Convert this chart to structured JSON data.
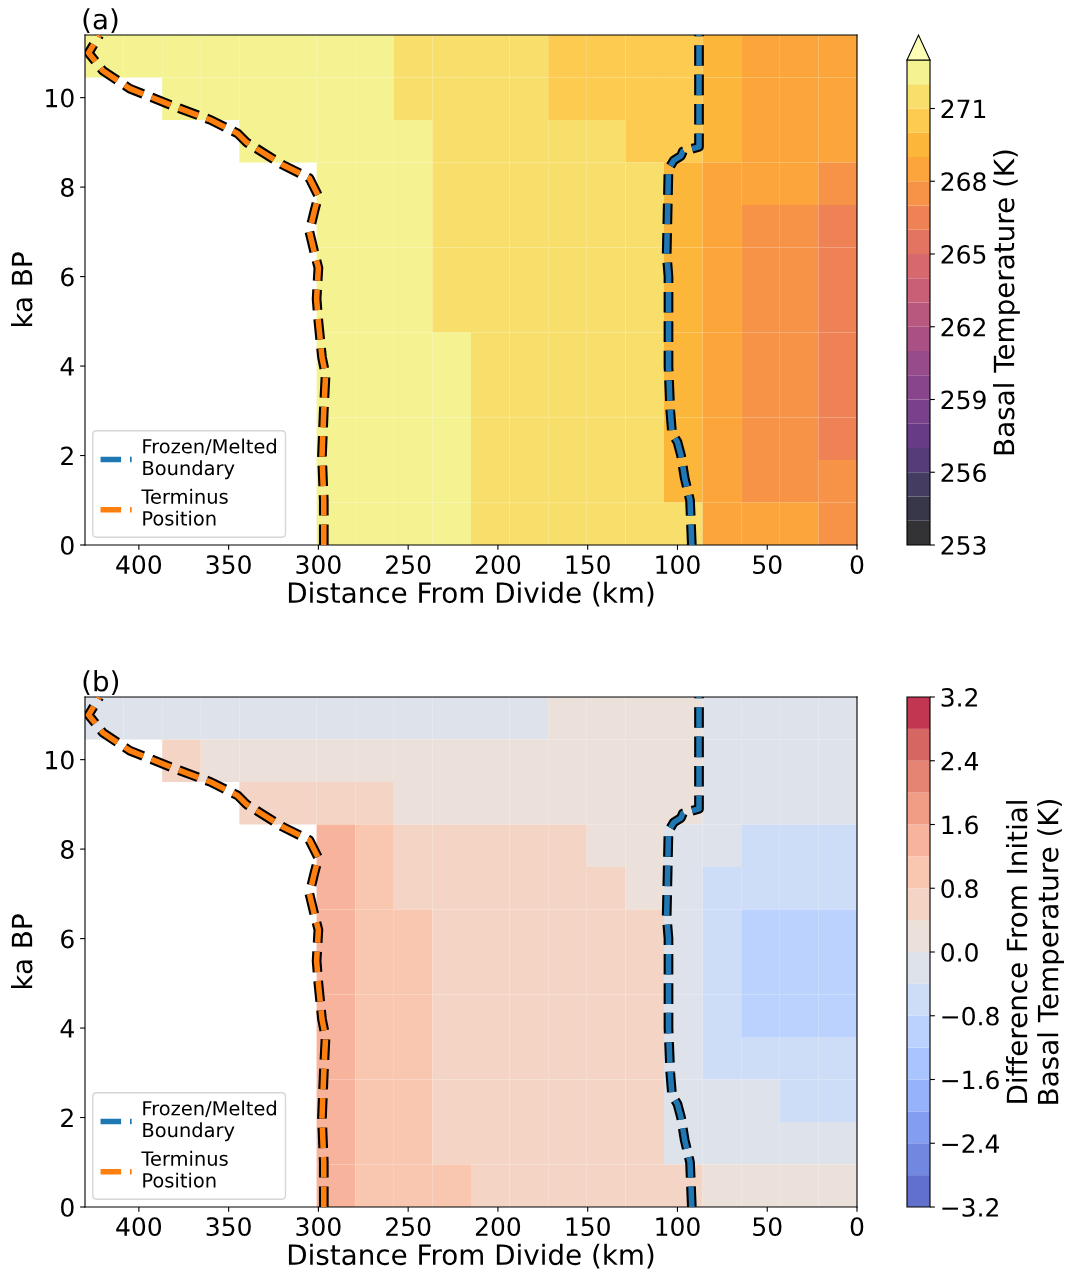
{
  "chart_data": [
    {
      "type": "heatmap",
      "title": "(a)",
      "xlabel": "Distance From Divide (km)",
      "ylabel": "ka BP",
      "clabel": "Basal Temperature (K)",
      "cells": [
        [
          272.5,
          272.5,
          272.5,
          272.5,
          272.5,
          272.5,
          272.5,
          272.5,
          271.5,
          271.5,
          271.5,
          271.5,
          270.5,
          270.5,
          270.5,
          270.5,
          269.5,
          268.5,
          268.5,
          268.5
        ],
        [
          null,
          null,
          272.5,
          272.5,
          272.5,
          272.5,
          272.5,
          272.5,
          271.5,
          271.5,
          271.5,
          271.5,
          270.5,
          270.5,
          270.5,
          270.5,
          269.5,
          268.5,
          268.5,
          268.5
        ],
        [
          null,
          null,
          null,
          null,
          272.5,
          272.5,
          272.5,
          272.5,
          272.5,
          271.5,
          271.5,
          271.5,
          271.5,
          271.5,
          270.5,
          270.5,
          269.5,
          268.5,
          268.5,
          268.5
        ],
        [
          null,
          null,
          null,
          null,
          null,
          null,
          272.5,
          272.5,
          272.5,
          271.5,
          271.5,
          271.5,
          271.5,
          271.5,
          271.5,
          269.5,
          268.5,
          268.5,
          268.5,
          267.5
        ],
        [
          null,
          null,
          null,
          null,
          null,
          null,
          272.5,
          272.5,
          272.5,
          271.5,
          271.5,
          271.5,
          271.5,
          271.5,
          271.5,
          269.5,
          268.5,
          267.5,
          267.5,
          266.5
        ],
        [
          null,
          null,
          null,
          null,
          null,
          null,
          272.5,
          272.5,
          272.5,
          271.5,
          271.5,
          271.5,
          271.5,
          271.5,
          271.5,
          269.5,
          268.5,
          267.5,
          267.5,
          266.5
        ],
        [
          null,
          null,
          null,
          null,
          null,
          null,
          272.5,
          272.5,
          272.5,
          271.5,
          271.5,
          271.5,
          271.5,
          271.5,
          271.5,
          269.5,
          268.5,
          267.5,
          267.5,
          266.5
        ],
        [
          null,
          null,
          null,
          null,
          null,
          null,
          272.5,
          272.5,
          272.5,
          272.5,
          271.5,
          271.5,
          271.5,
          271.5,
          271.5,
          269.5,
          268.5,
          267.5,
          267.5,
          266.5
        ],
        [
          null,
          null,
          null,
          null,
          null,
          null,
          272.5,
          272.5,
          272.5,
          272.5,
          271.5,
          271.5,
          271.5,
          271.5,
          271.5,
          269.5,
          268.5,
          267.5,
          267.5,
          266.5
        ],
        [
          null,
          null,
          null,
          null,
          null,
          null,
          272.5,
          272.5,
          272.5,
          272.5,
          271.5,
          271.5,
          271.5,
          271.5,
          271.5,
          269.5,
          268.5,
          267.5,
          267.5,
          266.5
        ],
        [
          null,
          null,
          null,
          null,
          null,
          null,
          272.5,
          272.5,
          272.5,
          272.5,
          271.5,
          271.5,
          271.5,
          271.5,
          271.5,
          269.5,
          268.5,
          267.5,
          267.5,
          267.5
        ],
        [
          null,
          null,
          null,
          null,
          null,
          null,
          272.5,
          272.5,
          272.5,
          272.5,
          271.5,
          271.5,
          271.5,
          271.5,
          271.5,
          271.5,
          268.5,
          268.5,
          268.5,
          267.5
        ]
      ],
      "clim": [
        253,
        273
      ],
      "cticks": [
        253,
        256,
        259,
        262,
        265,
        268,
        271
      ],
      "xlim": [
        430,
        0
      ],
      "xticks": [
        400,
        350,
        300,
        250,
        200,
        150,
        100,
        50,
        0
      ],
      "ylim": [
        0,
        11.4
      ],
      "yticks": [
        0,
        2,
        4,
        6,
        8,
        10
      ],
      "legend": "bottom left",
      "line_style": "dashed",
      "series": [
        {
          "type": "line",
          "name": "Frozen/Melted\nBoundary",
          "color": "#1f77b4",
          "x": [
            92,
            93,
            96,
            98,
            100,
            103,
            104,
            105,
            105,
            106,
            105,
            102,
            98,
            97,
            88,
            88
          ],
          "values": [
            0,
            1,
            1.5,
            2,
            2.3,
            2.5,
            3,
            4,
            6,
            6.5,
            8.4,
            8.6,
            8.7,
            8.8,
            8.9,
            11.4
          ]
        },
        {
          "type": "line",
          "name": "Terminus\nPosition",
          "color": "#ff7f0e",
          "x": [
            297,
            297,
            298,
            297,
            296,
            298,
            300,
            301,
            300,
            302,
            305,
            302,
            300,
            305,
            320,
            340,
            345,
            360,
            380,
            405,
            420,
            428,
            422
          ],
          "values": [
            0,
            1,
            2,
            3,
            3.8,
            4.2,
            5,
            5.5,
            6.2,
            6.5,
            7,
            7.5,
            7.8,
            8.2,
            8.5,
            9,
            9.2,
            9.5,
            9.8,
            10.2,
            10.6,
            11,
            11.4
          ]
        }
      ]
    },
    {
      "type": "heatmap",
      "title": "(b)",
      "xlabel": "Distance From Divide (km)",
      "ylabel": "ka BP",
      "clabel": "Difference From Initial\nBasal Temperature (K)",
      "cells": [
        [
          -0.2,
          -0.2,
          -0.2,
          -0.2,
          -0.2,
          -0.2,
          -0.2,
          -0.2,
          -0.2,
          -0.2,
          -0.2,
          -0.2,
          0.2,
          0.2,
          0.2,
          0.2,
          -0.2,
          -0.2,
          -0.2,
          -0.2
        ],
        [
          null,
          null,
          0.6,
          0.2,
          0.2,
          0.2,
          0.2,
          0.2,
          0.2,
          0.2,
          0.2,
          0.2,
          0.2,
          0.2,
          0.2,
          0.2,
          -0.2,
          -0.2,
          -0.2,
          -0.2
        ],
        [
          null,
          null,
          null,
          null,
          0.6,
          0.6,
          0.6,
          0.6,
          0.2,
          0.2,
          0.2,
          0.2,
          0.2,
          0.2,
          0.2,
          0.2,
          -0.2,
          -0.2,
          -0.2,
          -0.2
        ],
        [
          null,
          null,
          null,
          null,
          null,
          null,
          1.4,
          1.0,
          0.6,
          0.6,
          0.6,
          0.6,
          0.6,
          0.2,
          0.2,
          -0.2,
          -0.2,
          -0.6,
          -0.6,
          -0.6
        ],
        [
          null,
          null,
          null,
          null,
          null,
          null,
          1.4,
          1.0,
          0.6,
          0.6,
          0.6,
          0.6,
          0.6,
          0.6,
          0.2,
          -0.2,
          -0.6,
          -0.6,
          -0.6,
          -0.6
        ],
        [
          null,
          null,
          null,
          null,
          null,
          null,
          1.4,
          1.0,
          1.0,
          0.6,
          0.6,
          0.6,
          0.6,
          0.6,
          0.6,
          -0.2,
          -0.6,
          -1.0,
          -1.0,
          -1.0
        ],
        [
          null,
          null,
          null,
          null,
          null,
          null,
          1.4,
          1.0,
          1.0,
          0.6,
          0.6,
          0.6,
          0.6,
          0.6,
          0.6,
          -0.2,
          -0.6,
          -1.0,
          -1.0,
          -1.0
        ],
        [
          null,
          null,
          null,
          null,
          null,
          null,
          1.4,
          1.0,
          1.0,
          0.6,
          0.6,
          0.6,
          0.6,
          0.6,
          0.6,
          -0.2,
          -0.6,
          -1.0,
          -1.0,
          -1.0
        ],
        [
          null,
          null,
          null,
          null,
          null,
          null,
          1.4,
          1.0,
          1.0,
          0.6,
          0.6,
          0.6,
          0.6,
          0.6,
          0.6,
          -0.2,
          -0.6,
          -0.6,
          -0.6,
          -0.6
        ],
        [
          null,
          null,
          null,
          null,
          null,
          null,
          1.4,
          1.0,
          1.0,
          0.6,
          0.6,
          0.6,
          0.6,
          0.6,
          0.6,
          -0.2,
          -0.2,
          -0.2,
          -0.6,
          -0.6
        ],
        [
          null,
          null,
          null,
          null,
          null,
          null,
          1.4,
          1.0,
          1.0,
          0.6,
          0.6,
          0.6,
          0.6,
          0.6,
          0.6,
          -0.2,
          -0.2,
          -0.2,
          -0.2,
          -0.2
        ],
        [
          null,
          null,
          null,
          null,
          null,
          null,
          1.4,
          1.0,
          1.0,
          1.0,
          0.6,
          0.6,
          0.6,
          0.6,
          0.6,
          0.6,
          0.2,
          0.2,
          0.2,
          0.2
        ]
      ],
      "clim": [
        -3.2,
        3.2
      ],
      "cticks": [
        {
          "value": -3.2,
          "label": "−3.2"
        },
        {
          "value": -2.4,
          "label": "−2.4"
        },
        {
          "value": -1.6,
          "label": "−1.6"
        },
        {
          "value": -0.8,
          "label": "−0.8"
        },
        {
          "value": 0,
          "label": "0.0"
        },
        0.8,
        1.6,
        2.4,
        3.2
      ],
      "xlim": [
        430,
        0
      ],
      "xticks": [
        400,
        350,
        300,
        250,
        200,
        150,
        100,
        50,
        0
      ],
      "ylim": [
        0,
        11.4
      ],
      "yticks": [
        0,
        2,
        4,
        6,
        8,
        10
      ],
      "legend": "bottom left",
      "line_style": "dashed",
      "series": [
        {
          "type": "line",
          "name": "Frozen/Melted\nBoundary",
          "color": "#1f77b4",
          "x": [
            92,
            93,
            96,
            98,
            100,
            103,
            104,
            105,
            105,
            106,
            105,
            102,
            98,
            97,
            88,
            88
          ],
          "values": [
            0,
            1,
            1.5,
            2,
            2.3,
            2.5,
            3,
            4,
            6,
            6.5,
            8.4,
            8.6,
            8.7,
            8.8,
            8.9,
            11.4
          ]
        },
        {
          "type": "line",
          "name": "Terminus\nPosition",
          "color": "#ff7f0e",
          "x": [
            297,
            297,
            298,
            297,
            296,
            298,
            300,
            301,
            300,
            302,
            305,
            302,
            300,
            305,
            320,
            340,
            345,
            360,
            380,
            405,
            420,
            428,
            422
          ],
          "values": [
            0,
            1,
            2,
            3,
            3.8,
            4.2,
            5,
            5.5,
            6.2,
            6.5,
            7,
            7.5,
            7.8,
            8.2,
            8.5,
            9,
            9.2,
            9.5,
            9.8,
            10.2,
            10.6,
            11,
            11.4
          ]
        }
      ]
    }
  ]
}
